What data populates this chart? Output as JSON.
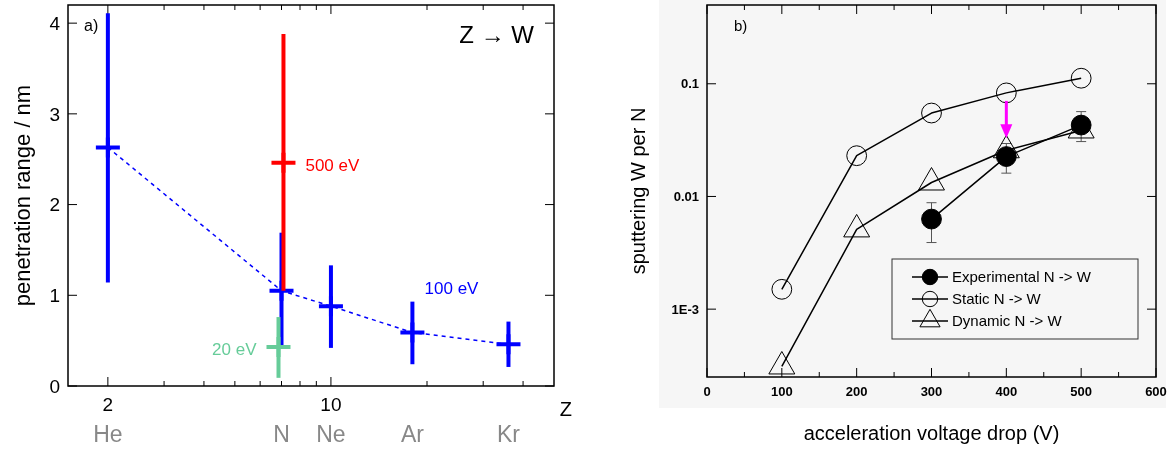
{
  "chart_data": [
    {
      "type": "scatter",
      "ylabel": "penetration range / nm",
      "xlabel": "Z",
      "log": "x",
      "grid": false,
      "xlim": [
        1.5,
        50
      ],
      "ylim": [
        0,
        4.2
      ],
      "xticks": [
        {
          "value": 2,
          "label": "2"
        },
        {
          "value": 3,
          "label": null
        },
        {
          "value": 4,
          "label": null
        },
        {
          "value": 5,
          "label": null
        },
        {
          "value": 6,
          "label": null
        },
        {
          "value": 7,
          "label": null
        },
        {
          "value": 8,
          "label": null
        },
        {
          "value": 9,
          "label": null
        },
        {
          "value": 10,
          "label": "10"
        },
        {
          "value": 20,
          "label": null
        },
        {
          "value": 30,
          "label": null
        },
        {
          "value": 40,
          "label": null
        }
      ],
      "yticks": [
        0,
        1,
        2,
        3,
        4
      ],
      "annotations": [
        "a)",
        "Z → W",
        "He",
        "N",
        "Ne",
        "Ar",
        "Kr"
      ],
      "series": [
        {
          "type": "line",
          "color": "#0000ff",
          "line_style": "dashed",
          "marker": "none",
          "x": [
            2,
            7,
            10,
            18,
            36
          ],
          "values": [
            2.63,
            1.05,
            0.88,
            0.59,
            0.46
          ]
        },
        {
          "name": "100 eV",
          "marker": "cross",
          "color": "#0000ff",
          "x": [
            2,
            7,
            10,
            18,
            36
          ],
          "values": [
            2.63,
            1.05,
            0.88,
            0.59,
            0.46
          ],
          "errors": [
            [
              1.14,
              4.11
            ],
            [
              0.42,
              1.69
            ],
            [
              0.42,
              1.33
            ],
            [
              0.24,
              0.93
            ],
            [
              0.21,
              0.71
            ]
          ]
        },
        {
          "name": "500 eV",
          "marker": "cross",
          "color": "#ff0000",
          "x": [
            7.1
          ],
          "values": [
            2.46
          ],
          "errors": [
            [
              1.05,
              3.88
            ]
          ]
        },
        {
          "name": "20 eV",
          "marker": "cross",
          "color": "#66cc99",
          "x": [
            6.85
          ],
          "values": [
            0.43
          ],
          "errors": [
            [
              0.09,
              0.76
            ]
          ]
        }
      ]
    },
    {
      "type": "line",
      "ylabel": "sputtering W per N",
      "xlabel": "acceleration voltage drop  (V)",
      "log": true,
      "grid": false,
      "legend": "bottom right",
      "xlim": [
        0,
        600
      ],
      "ylim": [
        0.00025,
        0.5
      ],
      "xticks": [
        0,
        {
          "value": 50,
          "label": null
        },
        100,
        {
          "value": 150,
          "label": null
        },
        200,
        {
          "value": 250,
          "label": null
        },
        300,
        {
          "value": 350,
          "label": null
        },
        400,
        {
          "value": 450,
          "label": null
        },
        500,
        {
          "value": 550,
          "label": null
        },
        600
      ],
      "yticks": [
        {
          "value": 0.001,
          "label": "1E-3"
        },
        0.01,
        0.1
      ],
      "annotations": [
        "b)"
      ],
      "series": [
        {
          "name": "Experimental  N -> W",
          "marker": "circle",
          "color": "#000000",
          "x": [
            300,
            400,
            500
          ],
          "values": [
            0.0063,
            0.0226,
            0.043
          ],
          "errors": [
            [
              0.0039,
              0.0088
            ],
            [
              0.0161,
              0.0295
            ],
            [
              0.0307,
              0.0566
            ]
          ]
        },
        {
          "name": "Static N -> W",
          "marker": "circle",
          "color": "#000000",
          "x": [
            100,
            200,
            300,
            400,
            500
          ],
          "values": [
            0.0015,
            0.023,
            0.055,
            0.083,
            0.112
          ]
        },
        {
          "name": "Dynamic N -> W",
          "marker": "triangle",
          "color": "#000000",
          "x": [
            100,
            200,
            300,
            400,
            500
          ],
          "values": [
            0.00031,
            0.0051,
            0.0133,
            0.0257,
            0.0385
          ]
        }
      ]
    }
  ]
}
